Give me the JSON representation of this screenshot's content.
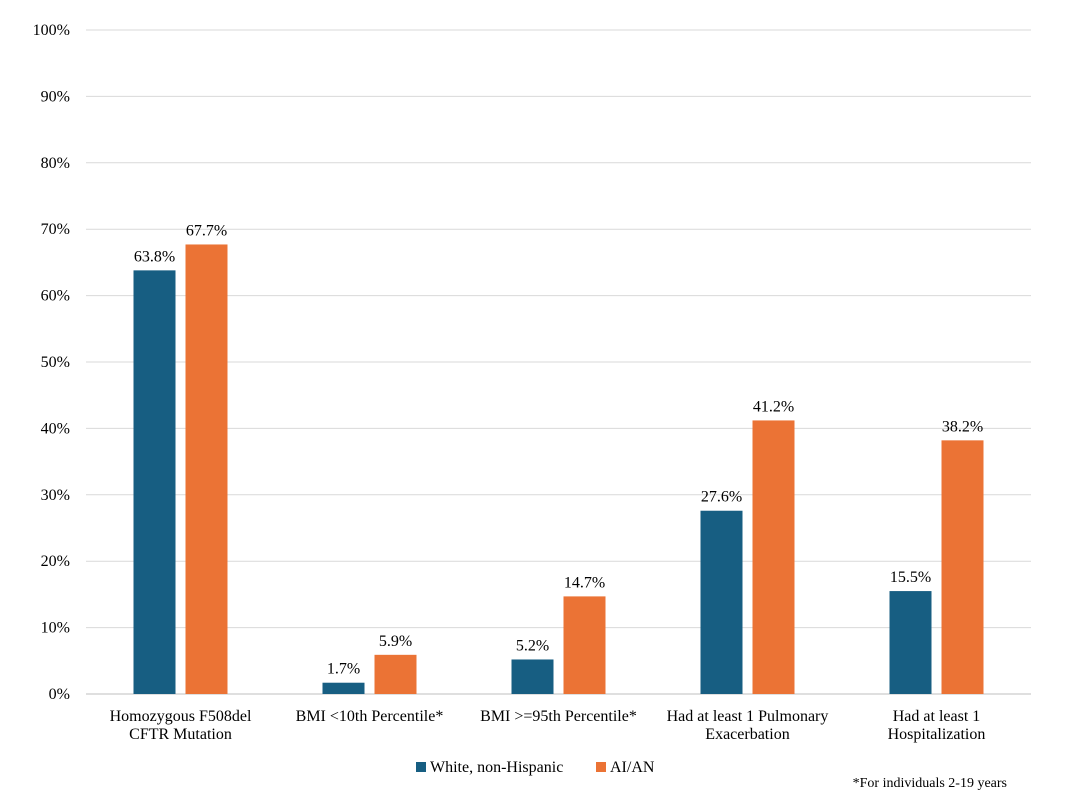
{
  "chart_data": {
    "type": "bar",
    "categories": [
      [
        "Homozygous F508del",
        "CFTR Mutation"
      ],
      [
        "BMI <10th Percentile*"
      ],
      [
        "BMI >=95th Percentile*"
      ],
      [
        "Had at least 1 Pulmonary",
        "Exacerbation"
      ],
      [
        "Had at least 1",
        "Hospitalization"
      ]
    ],
    "series": [
      {
        "name": "White, non-Hispanic",
        "color": "#175e82",
        "values": [
          63.8,
          1.7,
          5.2,
          27.6,
          15.5
        ],
        "labels": [
          "63.8%",
          "1.7%",
          "5.2%",
          "27.6%",
          "15.5%"
        ]
      },
      {
        "name": "AI/AN",
        "color": "#eb7335",
        "values": [
          67.7,
          5.9,
          14.7,
          41.2,
          38.2
        ],
        "labels": [
          "67.7%",
          "5.9%",
          "14.7%",
          "41.2%",
          "38.2%"
        ]
      }
    ],
    "yticks": [
      "0%",
      "10%",
      "20%",
      "30%",
      "40%",
      "50%",
      "60%",
      "70%",
      "80%",
      "90%",
      "100%"
    ],
    "ylim": [
      0,
      100
    ],
    "grid": true,
    "legend_position": "bottom",
    "title": "",
    "xlabel": "",
    "ylabel": ""
  },
  "footnote": "*For individuals 2-19 years"
}
